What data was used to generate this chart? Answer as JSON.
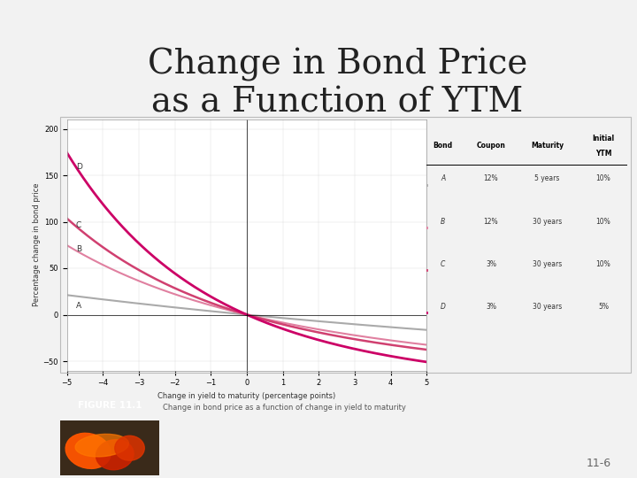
{
  "title": "Change in Bond Price\nas a Function of YTM",
  "title_fontsize": 28,
  "background_color": "#f2f2f2",
  "chart_bg": "#ffffff",
  "xlabel": "Change in yield to maturity (percentage points)",
  "ylabel": "Percentage change in bond price",
  "xlim": [
    -5,
    5
  ],
  "ylim": [
    -60,
    210
  ],
  "yticks": [
    -50,
    0,
    50,
    100,
    150,
    200
  ],
  "xticks": [
    -5,
    -4,
    -3,
    -2,
    -1,
    0,
    1,
    2,
    3,
    4,
    5
  ],
  "bonds": [
    {
      "label": "A",
      "coupon": 0.12,
      "maturity": 5,
      "ytm": 0.1,
      "color": "#aaaaaa",
      "lw": 1.5
    },
    {
      "label": "B",
      "coupon": 0.12,
      "maturity": 30,
      "ytm": 0.1,
      "color": "#e080a0",
      "lw": 1.5
    },
    {
      "label": "C",
      "coupon": 0.03,
      "maturity": 30,
      "ytm": 0.1,
      "color": "#d04070",
      "lw": 1.8
    },
    {
      "label": "D",
      "coupon": 0.03,
      "maturity": 30,
      "ytm": 0.05,
      "color": "#cc0066",
      "lw": 2.0
    }
  ],
  "figure_label": "FIGURE 11.1",
  "figure_caption": "Change in bond price as a function of change in yield to maturity",
  "slide_number": "11-6",
  "table_data": [
    [
      "A",
      "12%",
      "5 years",
      "10%"
    ],
    [
      "B",
      "12%",
      "30 years",
      "10%"
    ],
    [
      "C",
      "3%",
      "30 years",
      "10%"
    ],
    [
      "D",
      "3%",
      "30 years",
      "5%"
    ]
  ]
}
